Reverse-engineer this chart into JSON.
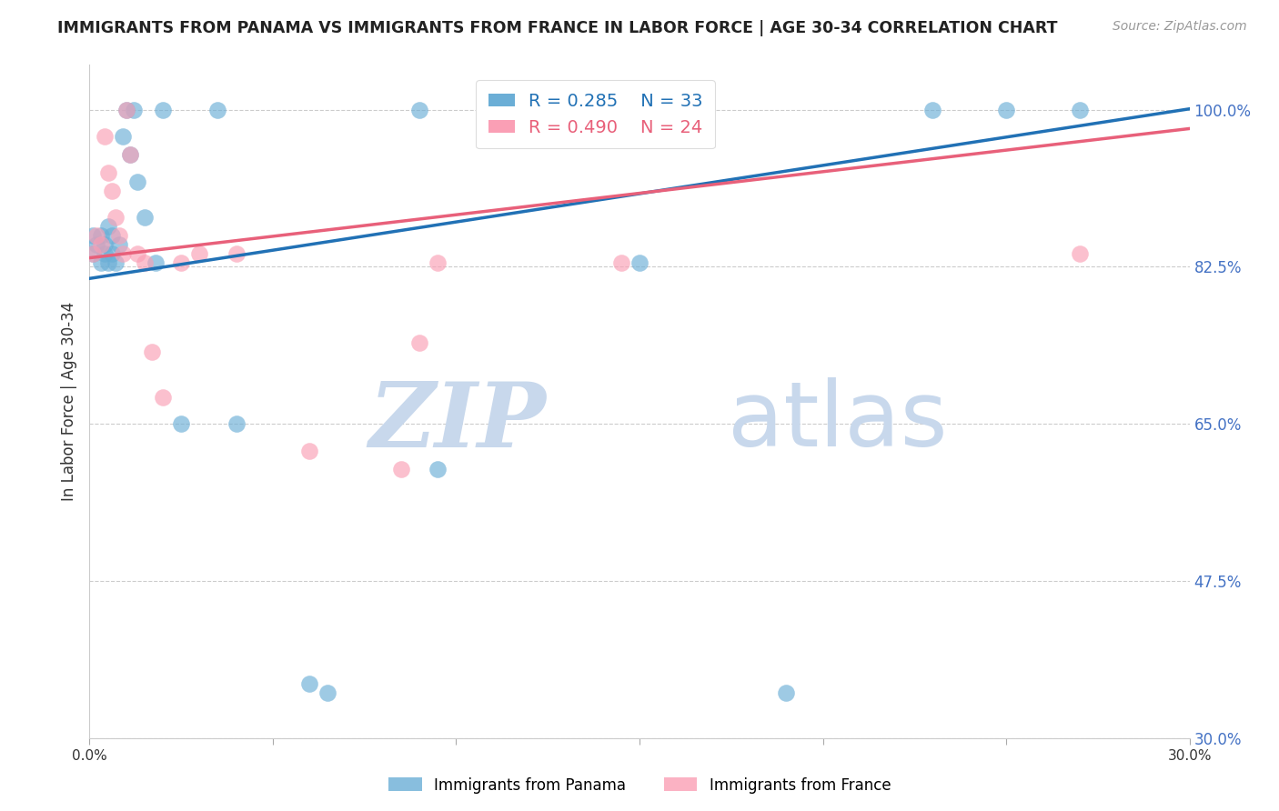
{
  "title": "IMMIGRANTS FROM PANAMA VS IMMIGRANTS FROM FRANCE IN LABOR FORCE | AGE 30-34 CORRELATION CHART",
  "source": "Source: ZipAtlas.com",
  "ylabel": "In Labor Force | Age 30-34",
  "xlim": [
    0.0,
    0.3
  ],
  "ylim": [
    0.3,
    1.05
  ],
  "xticks": [
    0.0,
    0.05,
    0.1,
    0.15,
    0.2,
    0.25,
    0.3
  ],
  "xtick_labels": [
    "0.0%",
    "",
    "",
    "",
    "",
    "",
    "30.0%"
  ],
  "ytick_labels": [
    "30.0%",
    "47.5%",
    "65.0%",
    "82.5%",
    "100.0%"
  ],
  "yticks": [
    0.3,
    0.475,
    0.65,
    0.825,
    1.0
  ],
  "panama_x": [
    0.001,
    0.001,
    0.002,
    0.003,
    0.003,
    0.004,
    0.004,
    0.005,
    0.005,
    0.006,
    0.006,
    0.007,
    0.008,
    0.009,
    0.01,
    0.011,
    0.012,
    0.013,
    0.015,
    0.018,
    0.02,
    0.025,
    0.035,
    0.04,
    0.06,
    0.065,
    0.09,
    0.095,
    0.15,
    0.19,
    0.23,
    0.25,
    0.27
  ],
  "panama_y": [
    0.84,
    0.86,
    0.85,
    0.83,
    0.86,
    0.84,
    0.85,
    0.83,
    0.87,
    0.84,
    0.86,
    0.83,
    0.85,
    0.97,
    1.0,
    0.95,
    1.0,
    0.92,
    0.88,
    0.83,
    1.0,
    0.65,
    1.0,
    0.65,
    0.36,
    0.35,
    1.0,
    0.6,
    0.83,
    0.35,
    1.0,
    1.0,
    1.0
  ],
  "france_x": [
    0.001,
    0.002,
    0.003,
    0.004,
    0.005,
    0.006,
    0.007,
    0.008,
    0.009,
    0.01,
    0.011,
    0.013,
    0.015,
    0.017,
    0.02,
    0.025,
    0.03,
    0.04,
    0.06,
    0.085,
    0.09,
    0.095,
    0.145,
    0.27
  ],
  "france_y": [
    0.84,
    0.86,
    0.85,
    0.97,
    0.93,
    0.91,
    0.88,
    0.86,
    0.84,
    1.0,
    0.95,
    0.84,
    0.83,
    0.73,
    0.68,
    0.83,
    0.84,
    0.84,
    0.62,
    0.6,
    0.74,
    0.83,
    0.83,
    0.84
  ],
  "panama_R": 0.285,
  "panama_N": 33,
  "france_R": 0.49,
  "france_N": 24,
  "blue_color": "#6baed6",
  "pink_color": "#fa9fb5",
  "blue_line_color": "#2171b5",
  "pink_line_color": "#e8607a",
  "grid_color": "#cccccc",
  "watermark_zip": "ZIP",
  "watermark_atlas": "atlas",
  "watermark_color": "#dce9f7"
}
